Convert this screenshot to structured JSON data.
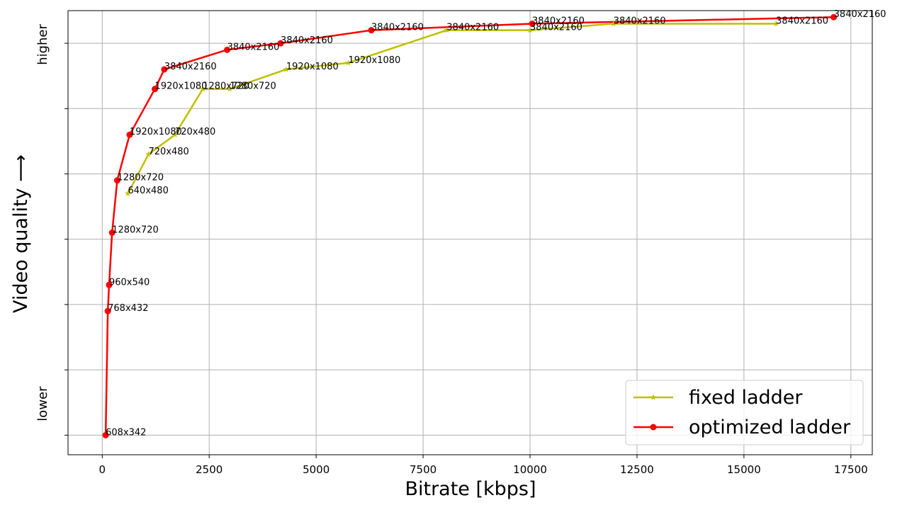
{
  "chart_data": {
    "type": "line",
    "xlabel": "Bitrate [kbps]",
    "ylabel": "Video quality ⟶",
    "xlim": [
      -800,
      18000
    ],
    "ylim": [
      -0.3,
      6.5
    ],
    "x_ticks": [
      0,
      2500,
      5000,
      7500,
      10000,
      12500,
      15000,
      17500
    ],
    "x_tick_labels": [
      "0",
      "2500",
      "5000",
      "7500",
      "10000",
      "12500",
      "15000",
      "17500"
    ],
    "y_ticks": [
      0,
      1,
      2,
      3,
      4,
      5,
      6
    ],
    "y_tick_labels": [
      {
        "y": 0.48,
        "text": "lower"
      },
      {
        "y": 5.98,
        "text": "higher"
      }
    ],
    "grid": true,
    "legend_position": "lower-right",
    "series": [
      {
        "name": "fixed ladder",
        "color": "#bfbf00",
        "marker": "star",
        "points": [
          {
            "x": 600,
            "y": 3.7,
            "label": "640x480"
          },
          {
            "x": 1080,
            "y": 4.3,
            "label": "720x480"
          },
          {
            "x": 1700,
            "y": 4.6,
            "label": "720x480"
          },
          {
            "x": 2350,
            "y": 5.3,
            "label": "1280x720"
          },
          {
            "x": 2980,
            "y": 5.3,
            "label": "1280x720"
          },
          {
            "x": 4300,
            "y": 5.6,
            "label": "1920x1080"
          },
          {
            "x": 5750,
            "y": 5.7,
            "label": "1920x1080"
          },
          {
            "x": 8050,
            "y": 6.2,
            "label": "3840x2160"
          },
          {
            "x": 10000,
            "y": 6.2,
            "label": "3840x2160"
          },
          {
            "x": 11950,
            "y": 6.3,
            "label": "3840x2160"
          },
          {
            "x": 15750,
            "y": 6.3,
            "label": "3840x2160"
          }
        ]
      },
      {
        "name": "optimized ladder",
        "color": "#ff0000",
        "marker": "circle",
        "points": [
          {
            "x": 80,
            "y": 0.0,
            "label": "608x342"
          },
          {
            "x": 130,
            "y": 1.9,
            "label": "768x432"
          },
          {
            "x": 160,
            "y": 2.3,
            "label": "960x540"
          },
          {
            "x": 230,
            "y": 3.1,
            "label": "1280x720"
          },
          {
            "x": 350,
            "y": 3.9,
            "label": "1280x720"
          },
          {
            "x": 640,
            "y": 4.6,
            "label": "1920x1080"
          },
          {
            "x": 1230,
            "y": 5.3,
            "label": "1920x1080"
          },
          {
            "x": 1450,
            "y": 5.6,
            "label": "3840x2160"
          },
          {
            "x": 2920,
            "y": 5.9,
            "label": "3840x2160"
          },
          {
            "x": 4170,
            "y": 6.0,
            "label": "3840x2160"
          },
          {
            "x": 6290,
            "y": 6.2,
            "label": "3840x2160"
          },
          {
            "x": 10050,
            "y": 6.3,
            "label": "3840x2160"
          },
          {
            "x": 17100,
            "y": 6.4,
            "label": "3840x2160"
          }
        ]
      }
    ]
  }
}
